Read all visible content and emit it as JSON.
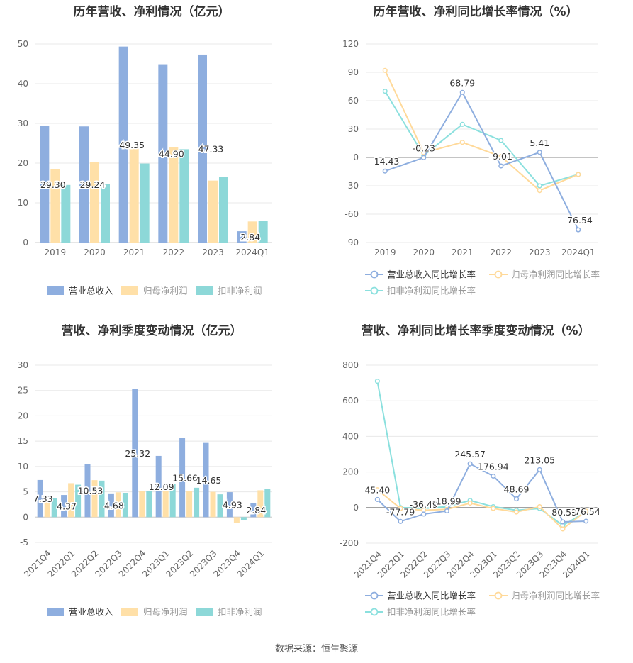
{
  "source_label": "数据来源：恒生聚源",
  "colors": {
    "revenue": "#8eaedf",
    "net_profit": "#ffe0a8",
    "deducted_profit": "#8dd8d8",
    "revenue_line": "#8eaedf",
    "net_line": "#ffd999",
    "deducted_line": "#8be0de"
  },
  "chart_data": [
    {
      "type": "bar",
      "title": "历年营收、净利情况（亿元）",
      "categories": [
        "2019",
        "2020",
        "2021",
        "2022",
        "2023",
        "2024Q1"
      ],
      "ylim": [
        0,
        50
      ],
      "yticks": [
        0,
        10,
        20,
        30,
        40,
        50
      ],
      "legend": "bottom",
      "series": [
        {
          "name": "营业总收入",
          "values": [
            29.3,
            29.24,
            49.35,
            44.9,
            47.33,
            2.84
          ],
          "labels": [
            "29.30",
            "29.24",
            "49.35",
            "44.90",
            "47.33",
            "2.84"
          ]
        },
        {
          "name": "归母净利润",
          "values": [
            18.4,
            20.2,
            23.6,
            24.1,
            15.6,
            5.3
          ]
        },
        {
          "name": "扣非净利润",
          "values": [
            14.5,
            14.7,
            19.9,
            23.5,
            16.5,
            5.5
          ]
        }
      ]
    },
    {
      "type": "line",
      "title": "历年营收、净利同比增长率情况（%）",
      "categories": [
        "2019",
        "2020",
        "2021",
        "2022",
        "2023",
        "2024Q1"
      ],
      "ylim": [
        -90,
        120
      ],
      "yticks": [
        -90,
        -60,
        -30,
        0,
        30,
        60,
        90,
        120
      ],
      "legend": "bottom",
      "series": [
        {
          "name": "营业总收入同比增长率",
          "values": [
            -14.43,
            -0.23,
            68.79,
            -9.01,
            5.41,
            -76.54
          ],
          "labels": [
            "-14.43",
            "-0.23",
            "68.79",
            "-9.01",
            "5.41",
            "-76.54"
          ]
        },
        {
          "name": "归母净利润同比增长率",
          "values": [
            92,
            5,
            16,
            1,
            -35,
            -18
          ]
        },
        {
          "name": "扣非净利润同比增长率",
          "values": [
            70,
            2,
            35,
            18,
            -30,
            -18
          ]
        }
      ]
    },
    {
      "type": "bar",
      "title": "营收、净利季度变动情况（亿元）",
      "categories": [
        "2021Q4",
        "2022Q1",
        "2022Q2",
        "2022Q3",
        "2022Q4",
        "2023Q1",
        "2023Q2",
        "2023Q3",
        "2023Q4",
        "2024Q1"
      ],
      "ylim": [
        -5,
        30
      ],
      "yticks": [
        -5,
        0,
        5,
        10,
        15,
        20,
        25,
        30
      ],
      "legend": "bottom",
      "series": [
        {
          "name": "营业总收入",
          "values": [
            7.33,
            4.37,
            10.53,
            4.68,
            25.32,
            12.09,
            15.66,
            14.65,
            4.93,
            2.84
          ],
          "labels": [
            "7.33",
            "4.37",
            "10.53",
            "4.68",
            "25.32",
            "12.09",
            "15.66",
            "14.65",
            "4.93",
            "2.84"
          ]
        },
        {
          "name": "归母净利润",
          "values": [
            3.3,
            6.7,
            7.3,
            4.9,
            5.2,
            5.2,
            5.1,
            5.0,
            -1.1,
            5.3
          ]
        },
        {
          "name": "扣非净利润",
          "values": [
            3.7,
            6.4,
            7.2,
            4.8,
            5.1,
            6.6,
            5.8,
            4.5,
            -0.6,
            5.5
          ]
        }
      ]
    },
    {
      "type": "line",
      "title": "营收、净利同比增长率季度变动情况（%）",
      "categories": [
        "2021Q4",
        "2022Q1",
        "2022Q2",
        "2022Q3",
        "2022Q4",
        "2023Q1",
        "2023Q2",
        "2023Q3",
        "2023Q4",
        "2024Q1"
      ],
      "ylim": [
        -200,
        800
      ],
      "yticks": [
        -200,
        0,
        200,
        400,
        600,
        800
      ],
      "legend": "bottom",
      "series": [
        {
          "name": "营业总收入同比增长率",
          "values": [
            45.4,
            -77.79,
            -36.49,
            -18.99,
            245.57,
            176.94,
            48.69,
            213.05,
            -80.53,
            -76.54
          ],
          "labels": [
            "45.40",
            "-77.79",
            "-36.49",
            "-18.99",
            "245.57",
            "176.94",
            "48.69",
            "213.05",
            "-80.53",
            "-76.54"
          ]
        },
        {
          "name": "归母净利润同比增长率",
          "values": [
            100,
            -5,
            -15,
            -10,
            25,
            -5,
            -25,
            5,
            -120,
            -20
          ]
        },
        {
          "name": "扣非净利润同比增长率",
          "values": [
            710,
            0,
            -5,
            5,
            40,
            5,
            -15,
            -5,
            -100,
            -25
          ]
        }
      ]
    }
  ]
}
